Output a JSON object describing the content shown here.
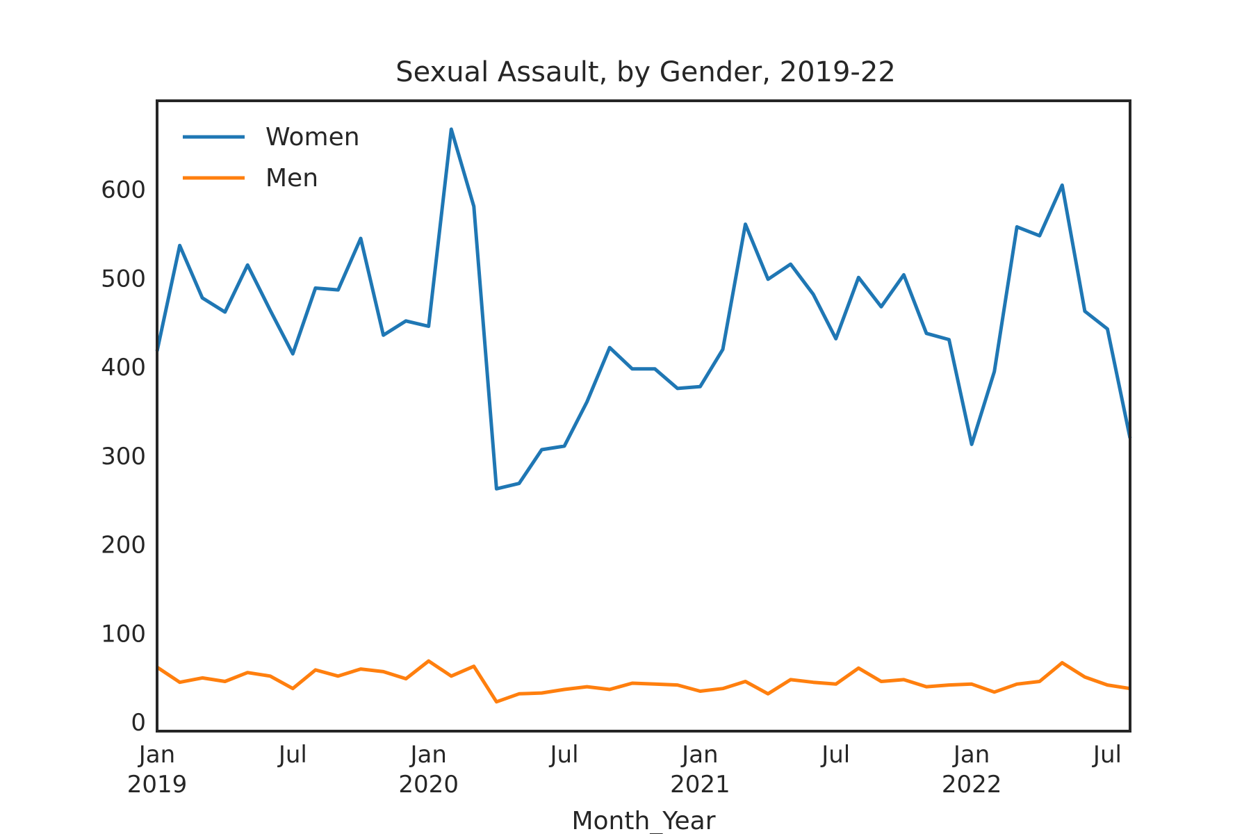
{
  "chart_data": {
    "type": "line",
    "title": "Sexual Assault, by Gender, 2019-22",
    "xlabel": "Month_Year",
    "ylabel": "",
    "x": [
      "2019-01",
      "2019-02",
      "2019-03",
      "2019-04",
      "2019-05",
      "2019-06",
      "2019-07",
      "2019-08",
      "2019-09",
      "2019-10",
      "2019-11",
      "2019-12",
      "2020-01",
      "2020-02",
      "2020-03",
      "2020-04",
      "2020-05",
      "2020-06",
      "2020-07",
      "2020-08",
      "2020-09",
      "2020-10",
      "2020-11",
      "2020-12",
      "2021-01",
      "2021-02",
      "2021-03",
      "2021-04",
      "2021-05",
      "2021-06",
      "2021-07",
      "2021-08",
      "2021-09",
      "2021-10",
      "2021-11",
      "2021-12",
      "2022-01",
      "2022-02",
      "2022-03",
      "2022-04",
      "2022-05",
      "2022-06",
      "2022-07",
      "2022-08"
    ],
    "series": [
      {
        "name": "Women",
        "color": "#1f77b4",
        "values": [
          418,
          537,
          478,
          462,
          515,
          464,
          415,
          489,
          487,
          545,
          436,
          452,
          446,
          668,
          581,
          263,
          269,
          307,
          311,
          361,
          422,
          398,
          398,
          376,
          378,
          420,
          561,
          499,
          516,
          482,
          432,
          501,
          468,
          504,
          438,
          431,
          313,
          395,
          558,
          548,
          605,
          463,
          443,
          320
        ]
      },
      {
        "name": "Men",
        "color": "#ff7f0e",
        "values": [
          62,
          45,
          50,
          46,
          56,
          52,
          38,
          59,
          52,
          60,
          57,
          49,
          69,
          52,
          63,
          23,
          32,
          33,
          37,
          40,
          37,
          44,
          43,
          42,
          35,
          38,
          46,
          32,
          48,
          45,
          43,
          61,
          46,
          48,
          40,
          42,
          43,
          34,
          43,
          46,
          67,
          51,
          42,
          38
        ]
      }
    ],
    "x_ticks": [
      {
        "index": 0,
        "label": "Jan",
        "sublabel": "2019"
      },
      {
        "index": 6,
        "label": "Jul",
        "sublabel": ""
      },
      {
        "index": 12,
        "label": "Jan",
        "sublabel": "2020"
      },
      {
        "index": 18,
        "label": "Jul",
        "sublabel": ""
      },
      {
        "index": 24,
        "label": "Jan",
        "sublabel": "2021"
      },
      {
        "index": 30,
        "label": "Jul",
        "sublabel": ""
      },
      {
        "index": 36,
        "label": "Jan",
        "sublabel": "2022"
      },
      {
        "index": 42,
        "label": "Jul",
        "sublabel": ""
      }
    ],
    "y_ticks": [
      "0",
      "100",
      "200",
      "300",
      "400",
      "500",
      "600"
    ],
    "ylim": [
      -10,
      700
    ],
    "grid": false,
    "legend": "top-left"
  }
}
